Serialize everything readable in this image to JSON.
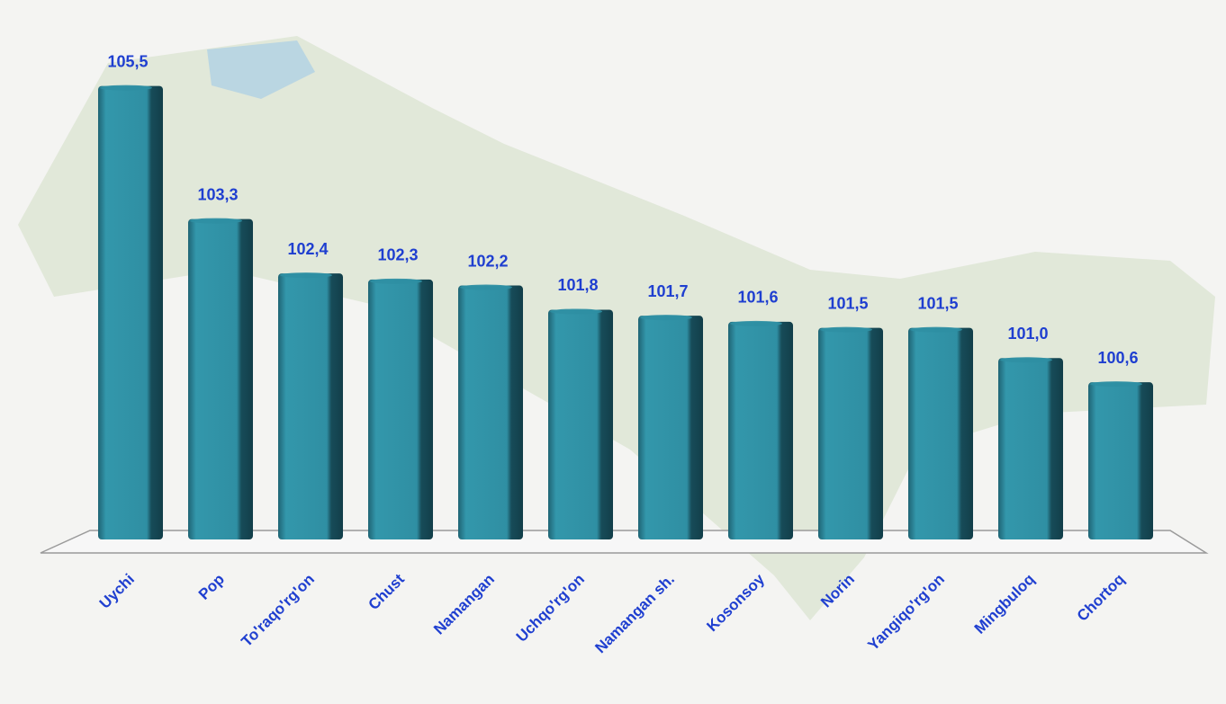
{
  "chart_data": {
    "type": "bar",
    "categories": [
      "Uychi",
      "Pop",
      "To'raqo'rg'on",
      "Chust",
      "Namangan",
      "Uchqo'rg'on",
      "Namangan sh.",
      "Kosonsoy",
      "Norin",
      "Yangiqo'rg'on",
      "Mingbuloq",
      "Chortoq"
    ],
    "values": [
      105.5,
      103.3,
      102.4,
      102.3,
      102.2,
      101.8,
      101.7,
      101.6,
      101.5,
      101.5,
      101.0,
      100.6
    ],
    "value_labels": [
      "105,5",
      "103,3",
      "102,4",
      "102,3",
      "102,2",
      "101,8",
      "101,7",
      "101,6",
      "101,5",
      "101,5",
      "101,0",
      "100,6"
    ],
    "color": "#2f8fa3",
    "ylim": [
      98,
      106
    ]
  }
}
